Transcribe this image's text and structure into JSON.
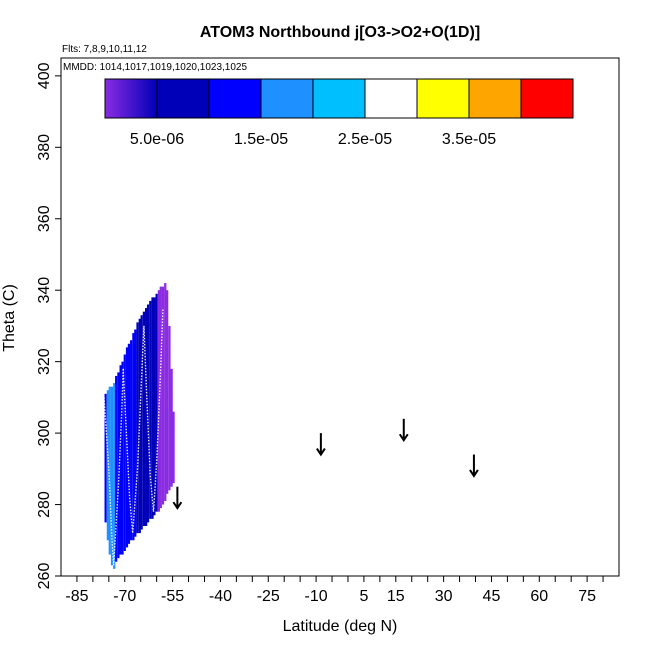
{
  "chart_data": {
    "type": "heatmap",
    "title": "ATOM3 Northbound j[O3->O2+O(1D)]",
    "subtitle_flights": "Flts: 7,8,9,10,11,12",
    "subtitle_dates": "MMDD: 1014,1017,1019,1020,1023,1025",
    "xlabel": "Latitude (deg N)",
    "ylabel": "Theta (C)",
    "xlim": [
      -90,
      85
    ],
    "ylim": [
      260,
      405
    ],
    "x_ticks": [
      -85,
      -80,
      -75,
      -70,
      -65,
      -60,
      -55,
      -50,
      -45,
      -40,
      -35,
      -30,
      -25,
      -20,
      -15,
      -10,
      -5,
      0,
      5,
      10,
      15,
      20,
      25,
      30,
      35,
      40,
      45,
      50,
      55,
      60,
      65,
      70,
      75,
      80
    ],
    "x_tick_labels": [
      "-85",
      "-70",
      "-55",
      "-40",
      "-25",
      "-10",
      "5",
      "15",
      "30",
      "45",
      "60",
      "75"
    ],
    "x_tick_label_values": [
      -85,
      -70,
      -55,
      -40,
      -25,
      -10,
      5,
      15,
      30,
      45,
      60,
      75
    ],
    "y_ticks": [
      260,
      280,
      300,
      320,
      340,
      360,
      380,
      400
    ],
    "y_tick_labels": [
      "260",
      "280",
      "300",
      "320",
      "340",
      "360",
      "380",
      "400"
    ],
    "colorbar": {
      "min": 0,
      "max": 4.5e-05,
      "boundaries": [
        0,
        5e-06,
        1e-05,
        1.5e-05,
        2e-05,
        2.5e-05,
        3e-05,
        3.5e-05,
        4e-05,
        4.5e-05
      ],
      "tick_values": [
        5e-06,
        1.5e-05,
        2.5e-05,
        3.5e-05
      ],
      "tick_labels": [
        "5.0e-06",
        "1.5e-05",
        "2.5e-05",
        "3.5e-05"
      ],
      "colors": [
        "#8a2be2",
        "#0000b8",
        "#0000ff",
        "#1e90ff",
        "#00bfff",
        "#ffffff",
        "#ffff00",
        "#ffa500",
        "#ff0000",
        "#b22222"
      ]
    },
    "columns": [
      {
        "x": -76.0,
        "ymin": 275,
        "ymax": 311,
        "value": 1.45e-05
      },
      {
        "x": -75.3,
        "ymin": 270,
        "ymax": 312,
        "value": 1.5e-05
      },
      {
        "x": -74.7,
        "ymin": 266,
        "ymax": 313,
        "value": 1.55e-05
      },
      {
        "x": -74.0,
        "ymin": 263,
        "ymax": 313,
        "value": 1.55e-05
      },
      {
        "x": -73.3,
        "ymin": 262,
        "ymax": 314,
        "value": 1.5e-05
      },
      {
        "x": -72.7,
        "ymin": 264,
        "ymax": 316,
        "value": 1.45e-05
      },
      {
        "x": -72.0,
        "ymin": 265,
        "ymax": 317,
        "value": 1.4e-05
      },
      {
        "x": -71.3,
        "ymin": 266,
        "ymax": 319,
        "value": 1.35e-05
      },
      {
        "x": -70.7,
        "ymin": 266,
        "ymax": 320,
        "value": 1.3e-05
      },
      {
        "x": -70.0,
        "ymin": 267,
        "ymax": 322,
        "value": 1.25e-05
      },
      {
        "x": -69.3,
        "ymin": 268,
        "ymax": 324,
        "value": 1.2e-05
      },
      {
        "x": -68.7,
        "ymin": 269,
        "ymax": 325,
        "value": 1.15e-05
      },
      {
        "x": -68.0,
        "ymin": 270,
        "ymax": 326,
        "value": 1.1e-05
      },
      {
        "x": -67.3,
        "ymin": 270,
        "ymax": 328,
        "value": 1.05e-05
      },
      {
        "x": -66.7,
        "ymin": 271,
        "ymax": 329,
        "value": 1e-05
      },
      {
        "x": -66.0,
        "ymin": 272,
        "ymax": 331,
        "value": 9.5e-06
      },
      {
        "x": -65.3,
        "ymin": 272,
        "ymax": 332,
        "value": 9e-06
      },
      {
        "x": -64.7,
        "ymin": 273,
        "ymax": 333,
        "value": 8.5e-06
      },
      {
        "x": -64.0,
        "ymin": 274,
        "ymax": 334,
        "value": 8e-06
      },
      {
        "x": -63.3,
        "ymin": 274,
        "ymax": 335,
        "value": 7.5e-06
      },
      {
        "x": -62.7,
        "ymin": 275,
        "ymax": 336,
        "value": 7e-06
      },
      {
        "x": -62.0,
        "ymin": 276,
        "ymax": 337,
        "value": 6.5e-06
      },
      {
        "x": -61.3,
        "ymin": 276,
        "ymax": 338,
        "value": 6e-06
      },
      {
        "x": -60.7,
        "ymin": 277,
        "ymax": 338,
        "value": 5.5e-06
      },
      {
        "x": -60.0,
        "ymin": 278,
        "ymax": 339,
        "value": 5e-06
      },
      {
        "x": -59.3,
        "ymin": 278,
        "ymax": 340,
        "value": 4.5e-06
      },
      {
        "x": -58.7,
        "ymin": 279,
        "ymax": 341,
        "value": 4e-06
      },
      {
        "x": -58.0,
        "ymin": 280,
        "ymax": 341,
        "value": 3.5e-06
      },
      {
        "x": -57.3,
        "ymin": 281,
        "ymax": 342,
        "value": 3e-06
      },
      {
        "x": -56.7,
        "ymin": 283,
        "ymax": 340,
        "value": 2.5e-06
      },
      {
        "x": -56.0,
        "ymin": 284,
        "ymax": 330,
        "value": 2e-06
      },
      {
        "x": -55.3,
        "ymin": 285,
        "ymax": 318,
        "value": 1.5e-06
      },
      {
        "x": -54.7,
        "ymin": 286,
        "ymax": 306,
        "value": 1e-06
      }
    ],
    "flight_tracks": [
      {
        "points": [
          [
            -76.5,
            310
          ],
          [
            -75.0,
            290
          ],
          [
            -74.0,
            270
          ],
          [
            -73.5,
            263
          ],
          [
            -72.0,
            285
          ],
          [
            -71.0,
            305
          ],
          [
            -70.5,
            318
          ]
        ]
      },
      {
        "points": [
          [
            -70.5,
            318
          ],
          [
            -69.5,
            300
          ],
          [
            -68.5,
            282
          ],
          [
            -67.5,
            272
          ],
          [
            -66.0,
            290
          ],
          [
            -65.0,
            310
          ],
          [
            -64.0,
            330
          ]
        ]
      },
      {
        "points": [
          [
            -64.0,
            330
          ],
          [
            -63.0,
            308
          ],
          [
            -62.0,
            288
          ],
          [
            -61.0,
            278
          ],
          [
            -60.0,
            292
          ],
          [
            -59.0,
            312
          ],
          [
            -58.0,
            335
          ]
        ]
      }
    ],
    "arrows": [
      {
        "x": -53.5,
        "y_top": 285,
        "y_bottom": 279
      },
      {
        "x": -8.5,
        "y_top": 300,
        "y_bottom": 294
      },
      {
        "x": 17.5,
        "y_top": 304,
        "y_bottom": 298
      },
      {
        "x": 39.5,
        "y_top": 294,
        "y_bottom": 288
      }
    ]
  }
}
